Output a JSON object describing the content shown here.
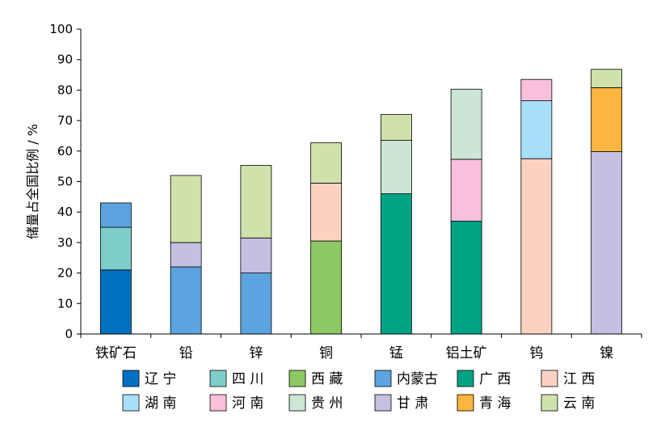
{
  "chart_data": {
    "type": "bar",
    "stacked": true,
    "ylabel": "储量占全国比例 / %",
    "ylim": [
      0,
      100
    ],
    "yticks": [
      0,
      10,
      20,
      30,
      40,
      50,
      60,
      70,
      80,
      90,
      100
    ],
    "categories": [
      "铁矿石",
      "铅",
      "锌",
      "铜",
      "锰",
      "铝土矿",
      "钨",
      "镍"
    ],
    "series": [
      {
        "name": "辽 宁",
        "color": "#0070C0",
        "values": [
          21.0,
          0,
          0,
          0,
          0,
          0,
          0,
          0
        ]
      },
      {
        "name": "四 川",
        "color": "#7ECECA",
        "values": [
          14.0,
          0,
          0,
          0,
          0,
          0,
          0,
          0
        ]
      },
      {
        "name": "西 藏",
        "color": "#8CC863",
        "values": [
          0,
          0,
          0,
          30.5,
          0,
          0,
          0,
          0
        ]
      },
      {
        "name": "内蒙古",
        "color": "#5BA4DF",
        "values": [
          8.0,
          22.0,
          20.0,
          0,
          0,
          0,
          0,
          0
        ]
      },
      {
        "name": "广 西",
        "color": "#00A485",
        "values": [
          0,
          0,
          0,
          0,
          46.0,
          37.0,
          0,
          0
        ]
      },
      {
        "name": "江 西",
        "color": "#FBD2C2",
        "values": [
          0,
          0,
          0,
          19.0,
          0,
          0,
          57.5,
          0
        ]
      },
      {
        "name": "湖 南",
        "color": "#A8DEF8",
        "values": [
          0,
          0,
          0,
          0,
          0,
          0,
          19.0,
          0
        ]
      },
      {
        "name": "河 南",
        "color": "#F8C0DA",
        "values": [
          0,
          0,
          0,
          0,
          0,
          20.3,
          7.0,
          0
        ]
      },
      {
        "name": "贵 州",
        "color": "#CBE6D5",
        "values": [
          0,
          0,
          0,
          0,
          17.5,
          23.0,
          0,
          0
        ]
      },
      {
        "name": "甘 肃",
        "color": "#C4C0E0",
        "values": [
          0,
          8.0,
          11.5,
          0,
          0,
          0,
          0,
          59.8
        ]
      },
      {
        "name": "青 海",
        "color": "#FBB540",
        "values": [
          0,
          0,
          0,
          0,
          0,
          0,
          0,
          21.0
        ]
      },
      {
        "name": "云 南",
        "color": "#CFE2AB",
        "values": [
          0,
          22.0,
          23.8,
          13.2,
          8.5,
          0,
          0,
          6.0
        ]
      }
    ],
    "legend_position": "bottom",
    "grid": false
  }
}
